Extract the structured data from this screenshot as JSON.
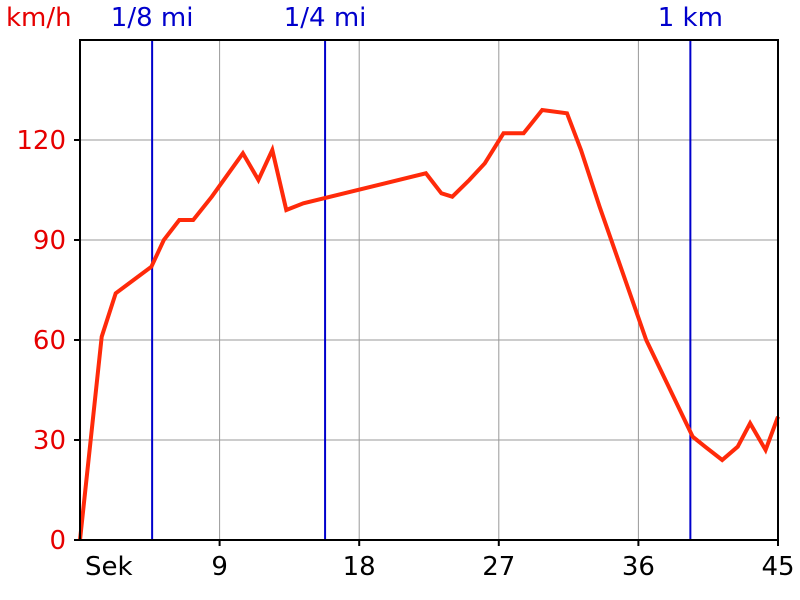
{
  "chart_data": {
    "type": "line",
    "ylabel": "km/h",
    "xlabel": "Sek",
    "xlim": [
      0,
      45
    ],
    "ylim": [
      0,
      150
    ],
    "xticks": [
      9,
      18,
      27,
      36,
      45
    ],
    "yticks": [
      0,
      30,
      60,
      90,
      120
    ],
    "grid": true,
    "series": [
      {
        "color": "#ff2a0a",
        "x": [
          0,
          1.4,
          2.3,
          4.6,
          5.4,
          6.4,
          7.3,
          8.5,
          10.5,
          11.5,
          12.4,
          13.3,
          14.4,
          22.3,
          23.3,
          24.0,
          25.1,
          26.1,
          27.3,
          28.6,
          29.8,
          31.4,
          32.3,
          33.5,
          36.5,
          39.5,
          40.3,
          41.4,
          42.4,
          43.2,
          44.2,
          45.0
        ],
        "y": [
          0,
          61,
          74,
          82,
          90,
          96,
          96,
          103,
          116,
          108,
          117,
          99,
          101,
          110,
          104,
          103,
          108,
          113,
          122,
          122,
          129,
          128,
          117,
          100,
          60,
          31,
          28,
          24,
          28,
          35,
          27,
          37
        ]
      }
    ],
    "markers": [
      {
        "label": "1/8 mi",
        "x": 4.65,
        "color": "#0000cc"
      },
      {
        "label": "1/4 mi",
        "x": 15.8,
        "color": "#0000cc"
      },
      {
        "label": "1 km",
        "x": 39.35,
        "color": "#0000cc"
      }
    ]
  }
}
